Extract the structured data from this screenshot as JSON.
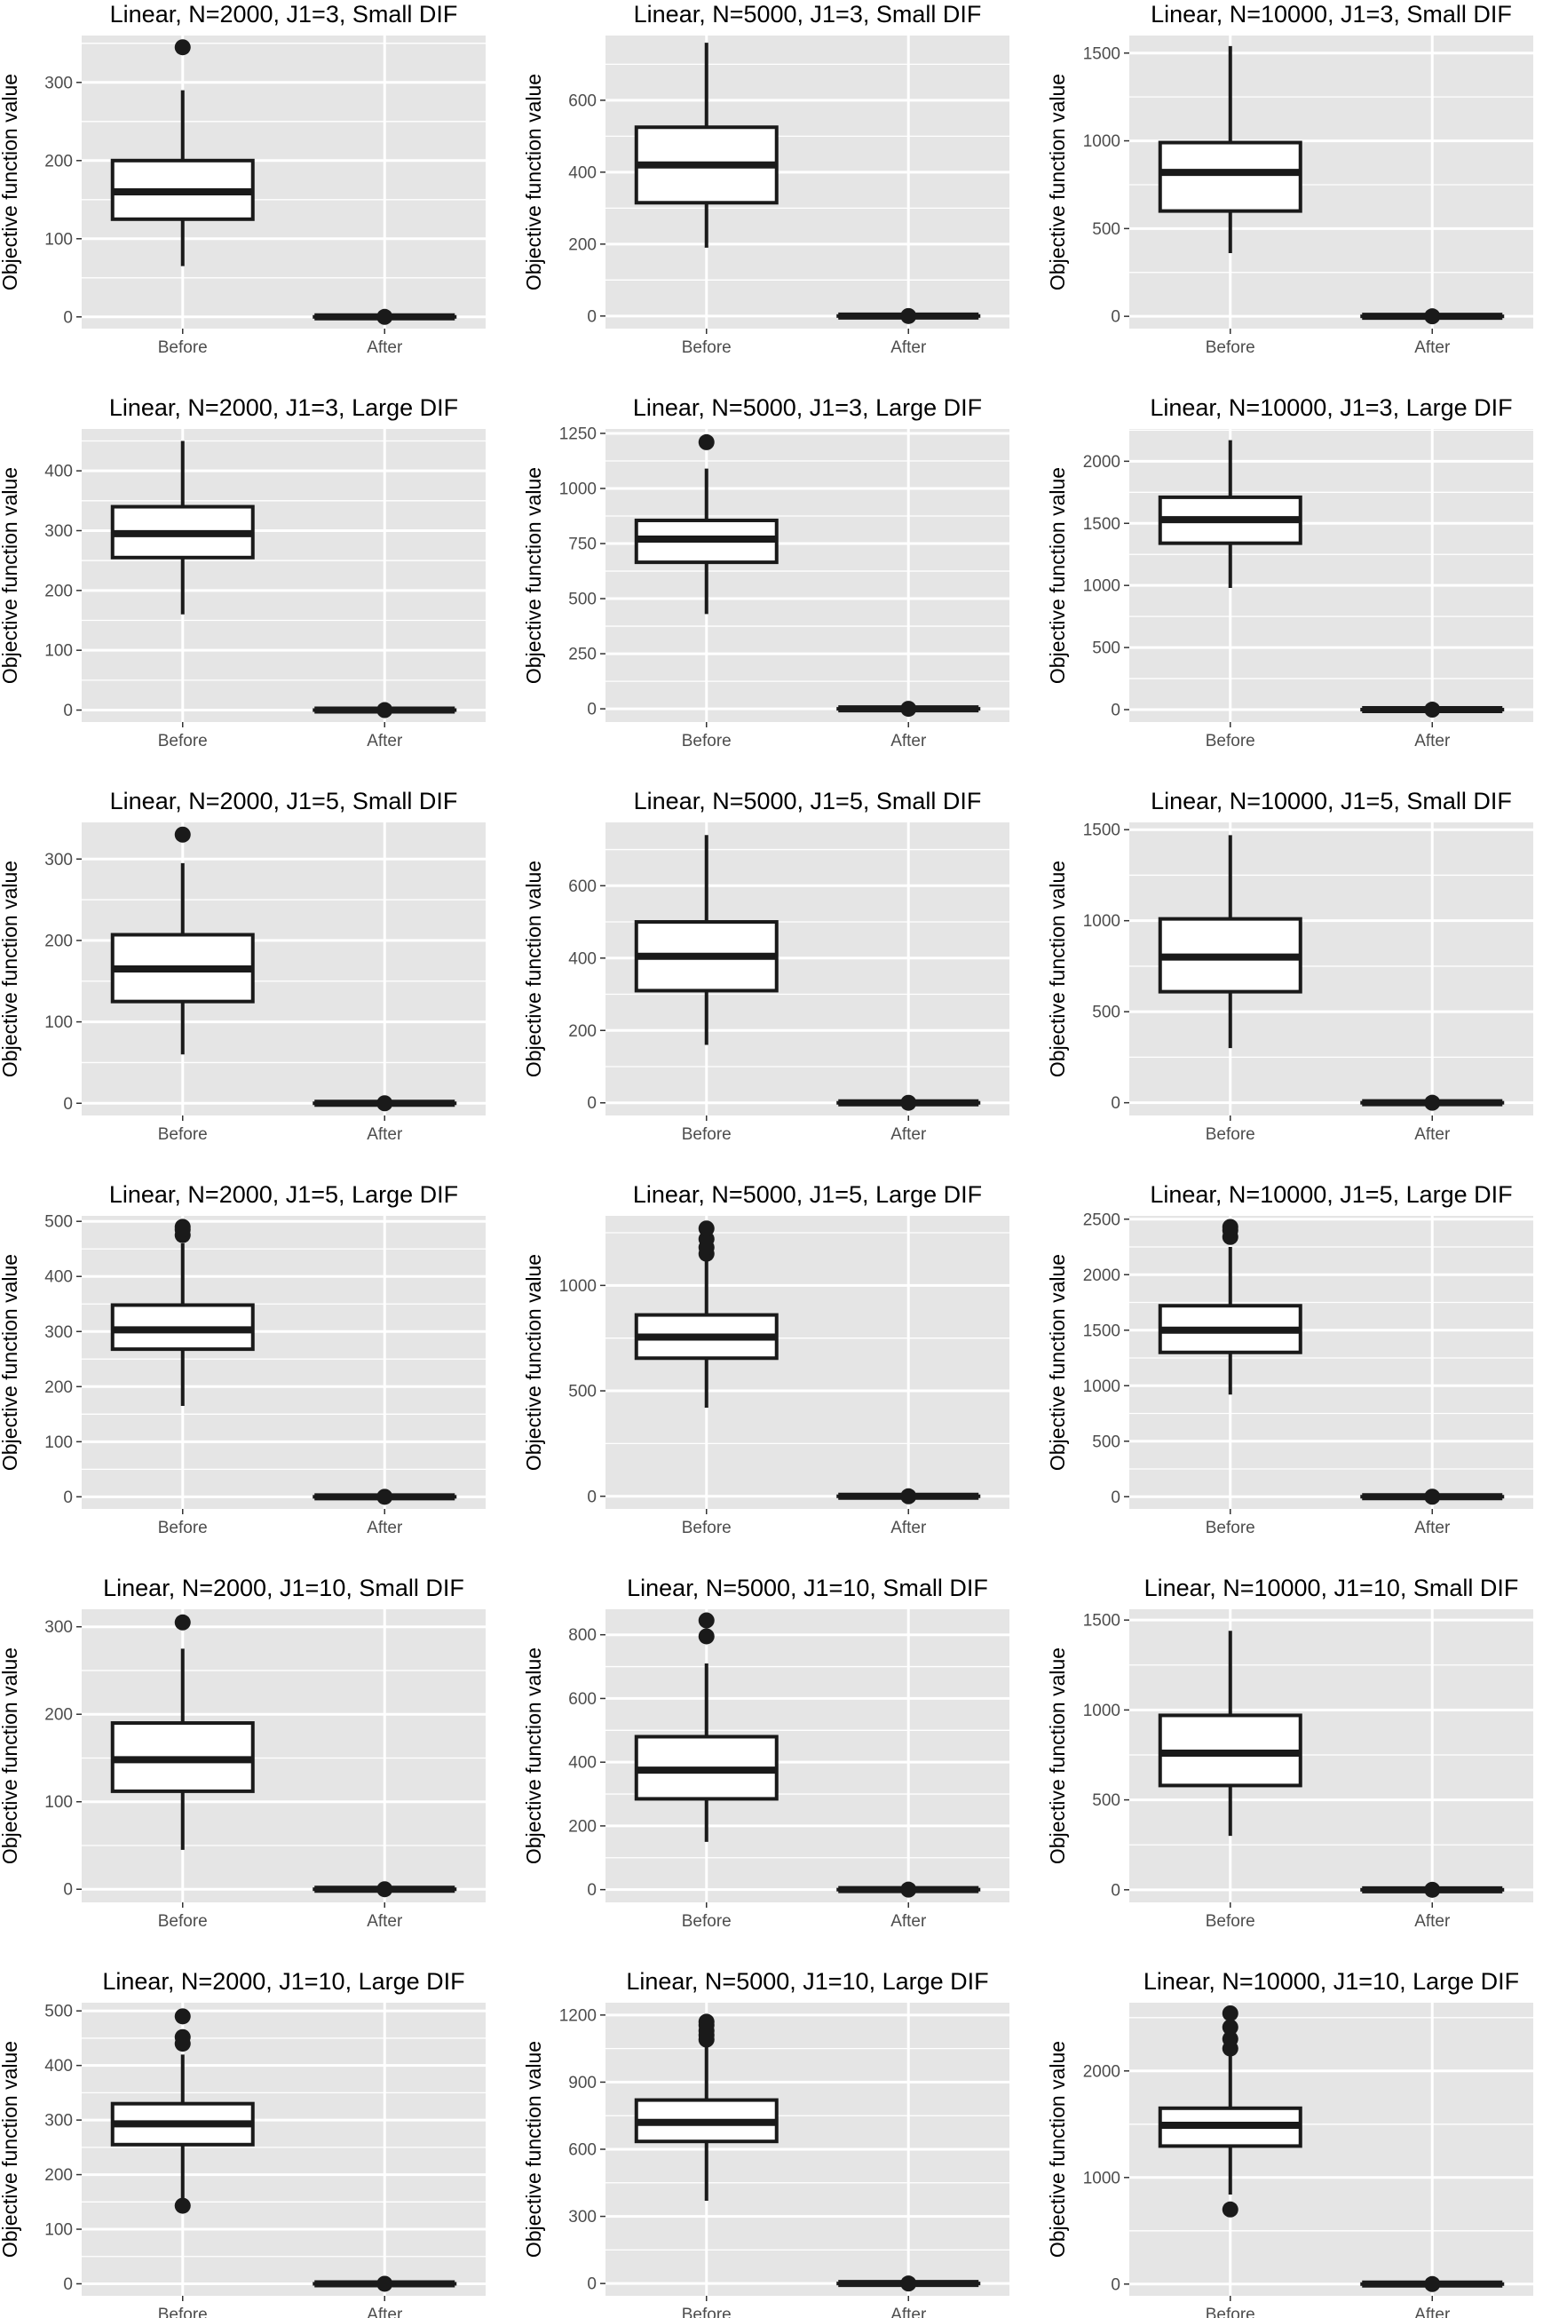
{
  "figure": {
    "ylabel": "Objective function value",
    "categories": [
      "Before",
      "After"
    ]
  },
  "colors": {
    "panel_bg": "#e5e5e5",
    "grid": "#ffffff",
    "box_fill": "#ffffff",
    "ink": "#1a1a1a",
    "axis_text": "#4d4d4d"
  },
  "chart_data": [
    {
      "type": "box",
      "title": "Linear, N=2000, J1=3, Small DIF",
      "ylabel": "Objective function value",
      "categories": [
        "Before",
        "After"
      ],
      "yticks": [
        0,
        100,
        200,
        300
      ],
      "ylim": [
        -15,
        360
      ],
      "boxes": [
        {
          "category": "Before",
          "min": 65,
          "q1": 125,
          "median": 160,
          "q3": 200,
          "max": 290,
          "outliers": [
            345
          ]
        },
        {
          "category": "After",
          "min": 0,
          "q1": 0,
          "median": 0,
          "q3": 0,
          "max": 0,
          "outliers": [
            0
          ]
        }
      ]
    },
    {
      "type": "box",
      "title": "Linear, N=5000, J1=3, Small DIF",
      "ylabel": "Objective function value",
      "categories": [
        "Before",
        "After"
      ],
      "yticks": [
        0,
        200,
        400,
        600
      ],
      "ylim": [
        -35,
        780
      ],
      "boxes": [
        {
          "category": "Before",
          "min": 190,
          "q1": 315,
          "median": 420,
          "q3": 525,
          "max": 760,
          "outliers": []
        },
        {
          "category": "After",
          "min": 0,
          "q1": 0,
          "median": 0,
          "q3": 0,
          "max": 0,
          "outliers": [
            0
          ]
        }
      ]
    },
    {
      "type": "box",
      "title": "Linear, N=10000, J1=3, Small DIF",
      "ylabel": "Objective function value",
      "categories": [
        "Before",
        "After"
      ],
      "yticks": [
        0,
        500,
        1000,
        1500
      ],
      "ylim": [
        -70,
        1600
      ],
      "boxes": [
        {
          "category": "Before",
          "min": 360,
          "q1": 600,
          "median": 820,
          "q3": 990,
          "max": 1540,
          "outliers": []
        },
        {
          "category": "After",
          "min": 0,
          "q1": 0,
          "median": 0,
          "q3": 0,
          "max": 0,
          "outliers": [
            0
          ]
        }
      ]
    },
    {
      "type": "box",
      "title": "Linear, N=2000, J1=3, Large DIF",
      "ylabel": "Objective function value",
      "categories": [
        "Before",
        "After"
      ],
      "yticks": [
        0,
        100,
        200,
        300,
        400
      ],
      "ylim": [
        -20,
        470
      ],
      "boxes": [
        {
          "category": "Before",
          "min": 160,
          "q1": 255,
          "median": 295,
          "q3": 340,
          "max": 450,
          "outliers": []
        },
        {
          "category": "After",
          "min": 0,
          "q1": 0,
          "median": 0,
          "q3": 0,
          "max": 0,
          "outliers": [
            0
          ]
        }
      ]
    },
    {
      "type": "box",
      "title": "Linear, N=5000, J1=3, Large DIF",
      "ylabel": "Objective function value",
      "categories": [
        "Before",
        "After"
      ],
      "yticks": [
        0,
        250,
        500,
        750,
        1000,
        1250
      ],
      "ylim": [
        -60,
        1270
      ],
      "boxes": [
        {
          "category": "Before",
          "min": 430,
          "q1": 665,
          "median": 770,
          "q3": 855,
          "max": 1090,
          "outliers": [
            1210
          ]
        },
        {
          "category": "After",
          "min": 0,
          "q1": 0,
          "median": 0,
          "q3": 0,
          "max": 0,
          "outliers": [
            0
          ]
        }
      ]
    },
    {
      "type": "box",
      "title": "Linear, N=10000, J1=3, Large DIF",
      "ylabel": "Objective function value",
      "categories": [
        "Before",
        "After"
      ],
      "yticks": [
        0,
        500,
        1000,
        1500,
        2000
      ],
      "ylim": [
        -100,
        2260
      ],
      "boxes": [
        {
          "category": "Before",
          "min": 980,
          "q1": 1340,
          "median": 1530,
          "q3": 1710,
          "max": 2170,
          "outliers": []
        },
        {
          "category": "After",
          "min": 0,
          "q1": 0,
          "median": 0,
          "q3": 0,
          "max": 0,
          "outliers": [
            0
          ]
        }
      ]
    },
    {
      "type": "box",
      "title": "Linear, N=2000, J1=5, Small DIF",
      "ylabel": "Objective function value",
      "categories": [
        "Before",
        "After"
      ],
      "yticks": [
        0,
        100,
        200,
        300
      ],
      "ylim": [
        -15,
        345
      ],
      "boxes": [
        {
          "category": "Before",
          "min": 60,
          "q1": 125,
          "median": 165,
          "q3": 207,
          "max": 295,
          "outliers": [
            330
          ]
        },
        {
          "category": "After",
          "min": 0,
          "q1": 0,
          "median": 0,
          "q3": 0,
          "max": 0,
          "outliers": [
            0
          ]
        }
      ]
    },
    {
      "type": "box",
      "title": "Linear, N=5000, J1=5, Small DIF",
      "ylabel": "Objective function value",
      "categories": [
        "Before",
        "After"
      ],
      "yticks": [
        0,
        200,
        400,
        600
      ],
      "ylim": [
        -35,
        775
      ],
      "boxes": [
        {
          "category": "Before",
          "min": 160,
          "q1": 310,
          "median": 405,
          "q3": 500,
          "max": 740,
          "outliers": []
        },
        {
          "category": "After",
          "min": 0,
          "q1": 0,
          "median": 0,
          "q3": 0,
          "max": 0,
          "outliers": [
            0
          ]
        }
      ]
    },
    {
      "type": "box",
      "title": "Linear, N=10000, J1=5, Small DIF",
      "ylabel": "Objective function value",
      "categories": [
        "Before",
        "After"
      ],
      "yticks": [
        0,
        500,
        1000,
        1500
      ],
      "ylim": [
        -70,
        1540
      ],
      "boxes": [
        {
          "category": "Before",
          "min": 300,
          "q1": 610,
          "median": 800,
          "q3": 1010,
          "max": 1470,
          "outliers": []
        },
        {
          "category": "After",
          "min": 0,
          "q1": 0,
          "median": 0,
          "q3": 0,
          "max": 0,
          "outliers": [
            0
          ]
        }
      ]
    },
    {
      "type": "box",
      "title": "Linear, N=2000, J1=5, Large DIF",
      "ylabel": "Objective function value",
      "categories": [
        "Before",
        "After"
      ],
      "yticks": [
        0,
        100,
        200,
        300,
        400,
        500
      ],
      "ylim": [
        -22,
        510
      ],
      "boxes": [
        {
          "category": "Before",
          "min": 165,
          "q1": 268,
          "median": 303,
          "q3": 348,
          "max": 460,
          "outliers": [
            475,
            485,
            490
          ]
        },
        {
          "category": "After",
          "min": 0,
          "q1": 0,
          "median": 0,
          "q3": 0,
          "max": 0,
          "outliers": [
            0
          ]
        }
      ]
    },
    {
      "type": "box",
      "title": "Linear, N=5000, J1=5, Large DIF",
      "ylabel": "Objective function value",
      "categories": [
        "Before",
        "After"
      ],
      "yticks": [
        0,
        500,
        1000
      ],
      "ylim": [
        -60,
        1330
      ],
      "boxes": [
        {
          "category": "Before",
          "min": 420,
          "q1": 655,
          "median": 755,
          "q3": 860,
          "max": 1130,
          "outliers": [
            1150,
            1180,
            1220,
            1270
          ]
        },
        {
          "category": "After",
          "min": 0,
          "q1": 0,
          "median": 0,
          "q3": 0,
          "max": 0,
          "outliers": [
            0
          ]
        }
      ]
    },
    {
      "type": "box",
      "title": "Linear, N=10000, J1=5, Large DIF",
      "ylabel": "Objective function value",
      "categories": [
        "Before",
        "After"
      ],
      "yticks": [
        0,
        500,
        1000,
        1500,
        2000,
        2500
      ],
      "ylim": [
        -110,
        2530
      ],
      "boxes": [
        {
          "category": "Before",
          "min": 920,
          "q1": 1300,
          "median": 1500,
          "q3": 1720,
          "max": 2250,
          "outliers": [
            2340,
            2400,
            2430
          ]
        },
        {
          "category": "After",
          "min": 0,
          "q1": 0,
          "median": 0,
          "q3": 0,
          "max": 0,
          "outliers": [
            0
          ]
        }
      ]
    },
    {
      "type": "box",
      "title": "Linear, N=2000, J1=10, Small DIF",
      "ylabel": "Objective function value",
      "categories": [
        "Before",
        "After"
      ],
      "yticks": [
        0,
        100,
        200,
        300
      ],
      "ylim": [
        -15,
        320
      ],
      "boxes": [
        {
          "category": "Before",
          "min": 45,
          "q1": 112,
          "median": 148,
          "q3": 190,
          "max": 275,
          "outliers": [
            305
          ]
        },
        {
          "category": "After",
          "min": 0,
          "q1": 0,
          "median": 0,
          "q3": 0,
          "max": 0,
          "outliers": [
            0
          ]
        }
      ]
    },
    {
      "type": "box",
      "title": "Linear, N=5000, J1=10, Small DIF",
      "ylabel": "Objective function value",
      "categories": [
        "Before",
        "After"
      ],
      "yticks": [
        0,
        200,
        400,
        600,
        800
      ],
      "ylim": [
        -40,
        880
      ],
      "boxes": [
        {
          "category": "Before",
          "min": 150,
          "q1": 285,
          "median": 375,
          "q3": 480,
          "max": 710,
          "outliers": [
            795,
            845
          ]
        },
        {
          "category": "After",
          "min": 0,
          "q1": 0,
          "median": 0,
          "q3": 0,
          "max": 0,
          "outliers": [
            0
          ]
        }
      ]
    },
    {
      "type": "box",
      "title": "Linear, N=10000, J1=10, Small DIF",
      "ylabel": "Objective function value",
      "categories": [
        "Before",
        "After"
      ],
      "yticks": [
        0,
        500,
        1000,
        1500
      ],
      "ylim": [
        -70,
        1560
      ],
      "boxes": [
        {
          "category": "Before",
          "min": 300,
          "q1": 580,
          "median": 760,
          "q3": 970,
          "max": 1440,
          "outliers": []
        },
        {
          "category": "After",
          "min": 0,
          "q1": 0,
          "median": 0,
          "q3": 0,
          "max": 0,
          "outliers": [
            0
          ]
        }
      ]
    },
    {
      "type": "box",
      "title": "Linear, N=2000, J1=10, Large DIF",
      "ylabel": "Objective function value",
      "categories": [
        "Before",
        "After"
      ],
      "yticks": [
        0,
        100,
        200,
        300,
        400,
        500
      ],
      "ylim": [
        -22,
        515
      ],
      "boxes": [
        {
          "category": "Before",
          "min": 150,
          "q1": 255,
          "median": 293,
          "q3": 330,
          "max": 420,
          "outliers": [
            143,
            440,
            452,
            490
          ]
        },
        {
          "category": "After",
          "min": 0,
          "q1": 0,
          "median": 0,
          "q3": 0,
          "max": 0,
          "outliers": [
            0
          ]
        }
      ]
    },
    {
      "type": "box",
      "title": "Linear, N=5000, J1=10, Large DIF",
      "ylabel": "Objective function value",
      "categories": [
        "Before",
        "After"
      ],
      "yticks": [
        0,
        300,
        600,
        900,
        1200
      ],
      "ylim": [
        -55,
        1255
      ],
      "boxes": [
        {
          "category": "Before",
          "min": 370,
          "q1": 635,
          "median": 720,
          "q3": 820,
          "max": 1060,
          "outliers": [
            1090,
            1110,
            1130,
            1155,
            1170
          ]
        },
        {
          "category": "After",
          "min": 0,
          "q1": 0,
          "median": 0,
          "q3": 0,
          "max": 0,
          "outliers": [
            0
          ]
        }
      ]
    },
    {
      "type": "box",
      "title": "Linear, N=10000, J1=10, Large DIF",
      "ylabel": "Objective function value",
      "categories": [
        "Before",
        "After"
      ],
      "yticks": [
        0,
        1000,
        2000
      ],
      "ylim": [
        -110,
        2640
      ],
      "boxes": [
        {
          "category": "Before",
          "min": 840,
          "q1": 1295,
          "median": 1490,
          "q3": 1650,
          "max": 2150,
          "outliers": [
            700,
            2210,
            2300,
            2410,
            2540
          ]
        },
        {
          "category": "After",
          "min": 0,
          "q1": 0,
          "median": 0,
          "q3": 0,
          "max": 0,
          "outliers": [
            0
          ]
        }
      ]
    }
  ]
}
